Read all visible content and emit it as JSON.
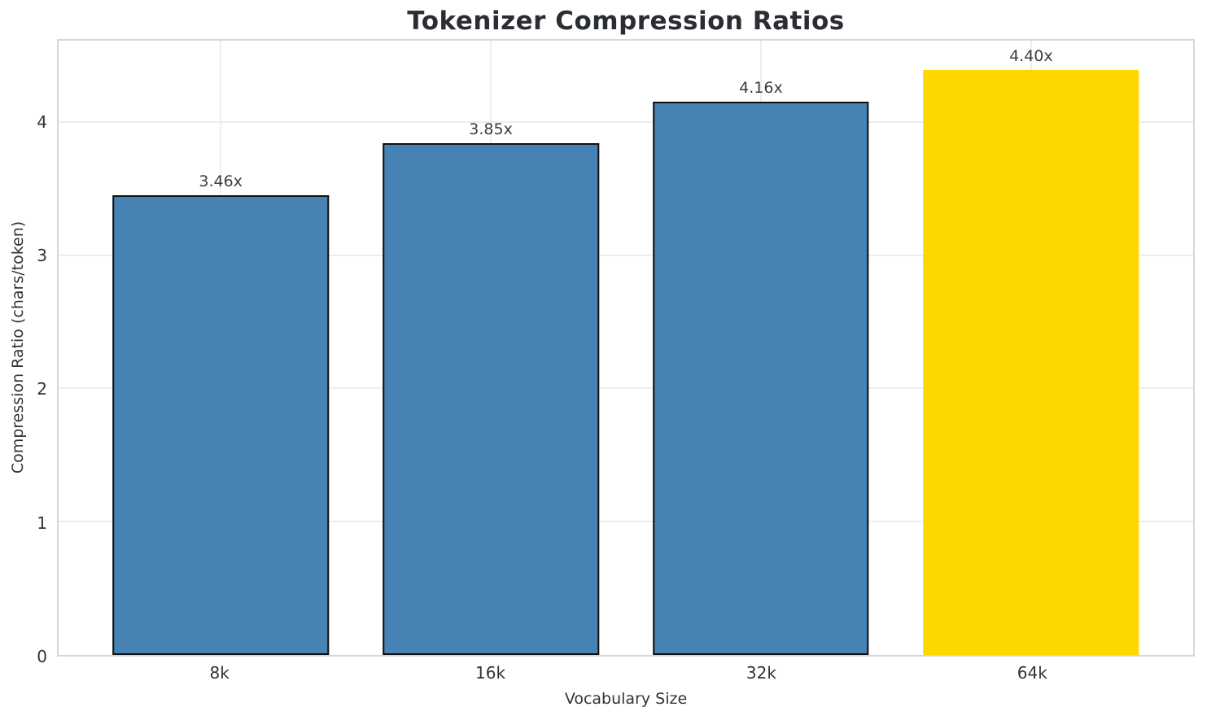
{
  "chart_data": {
    "type": "bar",
    "title": "Tokenizer Compression Ratios",
    "xlabel": "Vocabulary Size",
    "ylabel": "Compression Ratio (chars/token)",
    "categories": [
      "8k",
      "16k",
      "32k",
      "64k"
    ],
    "values": [
      3.46,
      3.85,
      4.16,
      4.4
    ],
    "value_labels": [
      "3.46x",
      "3.85x",
      "4.16x",
      "4.40x"
    ],
    "bar_colors": [
      "#4682B4",
      "#4682B4",
      "#4682B4",
      "#FFD700"
    ],
    "bar_edge_colors": [
      "#111111",
      "#111111",
      "#111111",
      "none"
    ],
    "highlight_index": 3,
    "yticks": [
      0,
      1,
      2,
      3,
      4
    ],
    "ylim": [
      0,
      4.62
    ],
    "xlim": [
      -0.6,
      3.6
    ],
    "bar_width": 0.8,
    "grid": true,
    "legend": "none",
    "colors": {
      "bar_default": "#4682B4",
      "bar_highlight": "#FFD700",
      "bar_edge": "#111111",
      "grid": "#ededed",
      "spine": "#d6d6d6",
      "title_text": "#2a2d32",
      "tick_text": "#333333",
      "value_label_text": "#3d3d3d"
    }
  }
}
